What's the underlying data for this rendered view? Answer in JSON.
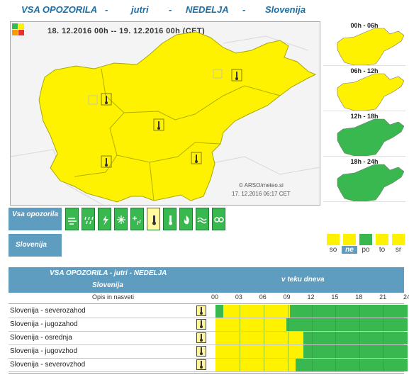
{
  "header": {
    "part1": "VSA OPOZORILA",
    "sep1": "-",
    "part2": "jutri",
    "sep2": "-",
    "part3": "NEDELJA",
    "sep3": "-",
    "part4": "Slovenija"
  },
  "map": {
    "date_range": "18. 12.2016  00h  --  19. 12.2016  00h     (CET)",
    "copyright": "© ARSO/meteo.si",
    "timestamp": "17. 12.2016   06:17 CET",
    "warning_color": "#fff200"
  },
  "mini_maps": [
    {
      "label": "00h - 06h",
      "color": "#fff200"
    },
    {
      "label": "06h - 12h",
      "color": "#fff200"
    },
    {
      "label": "12h - 18h",
      "color": "#38b84e"
    },
    {
      "label": "18h - 24h",
      "color": "#38b84e"
    }
  ],
  "hazards": {
    "label": "Vsa opozorila",
    "icons": [
      "wind-icon",
      "rain-icon",
      "thunderstorm-icon",
      "snow-icon",
      "snow-rain-icon",
      "high-temperature-icon",
      "low-temperature-icon",
      "forest-fire-icon",
      "flood-icon",
      "avalanche-icon"
    ],
    "selected_index": 5
  },
  "region_bar": {
    "label": "Slovenija",
    "days": [
      {
        "label": "so",
        "color": "#fff200"
      },
      {
        "label": "ne",
        "color": "#fff200"
      },
      {
        "label": "po",
        "color": "#38b84e"
      },
      {
        "label": "to",
        "color": "#fff200"
      },
      {
        "label": "sr",
        "color": "#fff200"
      }
    ],
    "selected_day": "ne"
  },
  "table": {
    "title": "VSA OPOZORILA - jutri - NEDELJA",
    "subtitle": "Slovenija",
    "right_title": "v teku dneva",
    "column_label": "Opis in nasveti",
    "hours": [
      "00",
      "03",
      "06",
      "09",
      "12",
      "15",
      "18",
      "21",
      "24"
    ],
    "rows": [
      {
        "name": "Slovenija - severozahod",
        "green_start_h": 1,
        "yellow_end_h": 9.3
      },
      {
        "name": "Slovenija - jugozahod",
        "green_start_h": 0,
        "yellow_end_h": 8.9
      },
      {
        "name": "Slovenija - osrednja",
        "green_start_h": 0,
        "yellow_end_h": 11
      },
      {
        "name": "Slovenija - jugovzhod",
        "green_start_h": 0,
        "yellow_end_h": 11
      },
      {
        "name": "Slovenija - severovzhod",
        "green_start_h": 0,
        "yellow_end_h": 10
      }
    ]
  }
}
